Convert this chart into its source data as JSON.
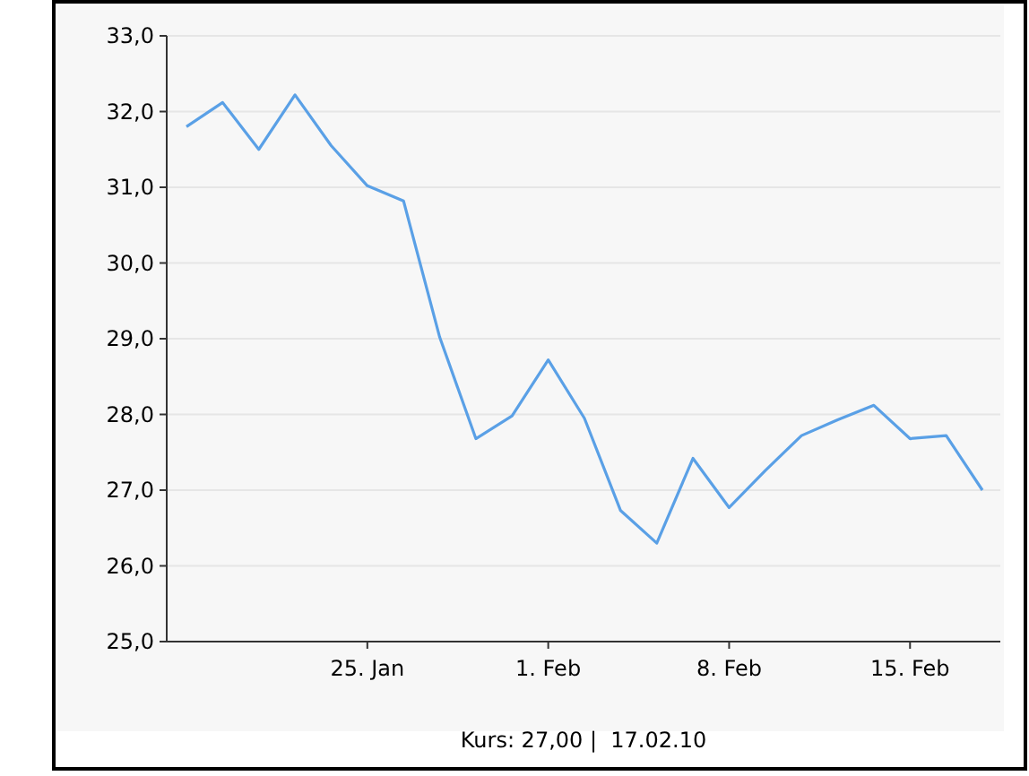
{
  "chart_data": {
    "type": "line",
    "categories": [
      null,
      null,
      null,
      null,
      null,
      "25. Jan",
      null,
      null,
      null,
      null,
      "1. Feb",
      null,
      null,
      null,
      null,
      "8. Feb",
      null,
      null,
      null,
      null,
      "15. Feb",
      null,
      null
    ],
    "series": [
      {
        "color": "#5aa0e6",
        "values": [
          31.8,
          32.12,
          31.5,
          32.22,
          31.55,
          31.02,
          30.82,
          29.02,
          27.68,
          27.98,
          28.72,
          27.95,
          26.73,
          26.3,
          27.42,
          26.77,
          27.26,
          27.72,
          27.93,
          28.12,
          27.68,
          27.72,
          27.0
        ]
      }
    ],
    "ylim": [
      25,
      33
    ],
    "yticks": [
      {
        "value": 25,
        "label": "25,0"
      },
      {
        "value": 26,
        "label": "26,0"
      },
      {
        "value": 27,
        "label": "27,0"
      },
      {
        "value": 28,
        "label": "28,0"
      },
      {
        "value": 29,
        "label": "29,0"
      },
      {
        "value": 30,
        "label": "30,0"
      },
      {
        "value": 31,
        "label": "31,0"
      },
      {
        "value": 32,
        "label": "32,0"
      },
      {
        "value": 33,
        "label": "33,0"
      }
    ],
    "grid": "y",
    "marker": "none",
    "line_style": "solid",
    "annotations": [
      "Kurs: 27,00 |  17.02.10"
    ]
  }
}
